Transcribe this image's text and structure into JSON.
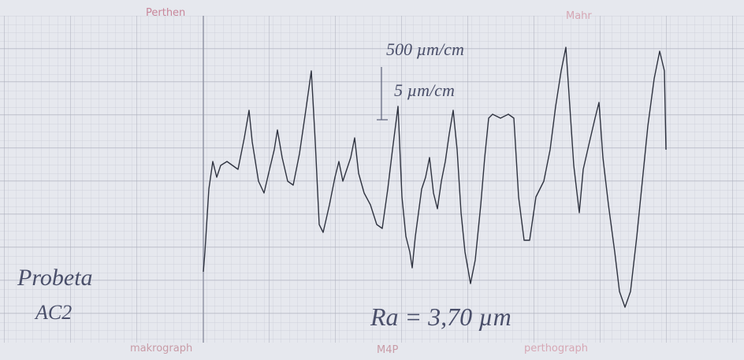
{
  "header": {
    "brand_left": "Perthen",
    "brand_right": "Mahr"
  },
  "annotations": {
    "vertical_scale": "500 µm/cm",
    "horizontal_scale": "5 µm/cm",
    "specimen_line1": "Probeta",
    "specimen_line2": "AC2",
    "roughness": "Ra = 3,70 µm"
  },
  "footer": {
    "left": "makrograph",
    "center": "M4P",
    "right": "perthograph"
  }
}
